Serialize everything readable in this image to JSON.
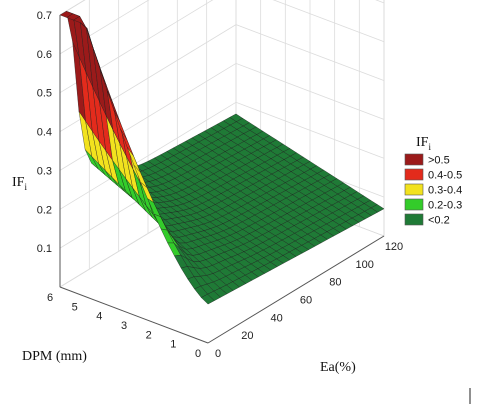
{
  "chart_data": {
    "type": "surface3d",
    "z_label": "IF",
    "z_label_sub": "i",
    "x_label": "Ea(%)",
    "y_label": "DPM (mm)",
    "x_ticks": [
      "0",
      "20",
      "40",
      "60",
      "80",
      "100",
      "120"
    ],
    "y_ticks": [
      "0",
      "1",
      "2",
      "3",
      "4",
      "5",
      "6"
    ],
    "z_ticks": [
      "0.1",
      "0.2",
      "0.3",
      "0.4",
      "0.5",
      "0.6",
      "0.7"
    ],
    "xlim": [
      0,
      120
    ],
    "ylim": [
      0,
      6
    ],
    "zlim": [
      0,
      0.7
    ],
    "grid": true,
    "legend_position": "right",
    "legend": {
      "title": "IF",
      "title_sub": "i",
      "items": [
        {
          "label": ">0.5",
          "color": "#9b1a1a"
        },
        {
          "label": "0.4-0.5",
          "color": "#e32b1c"
        },
        {
          "label": "0.3-0.4",
          "color": "#f2e21e"
        },
        {
          "label": "0.2-0.3",
          "color": "#33cc2a"
        },
        {
          "label": "<0.2",
          "color": "#1f7a36"
        }
      ]
    }
  }
}
